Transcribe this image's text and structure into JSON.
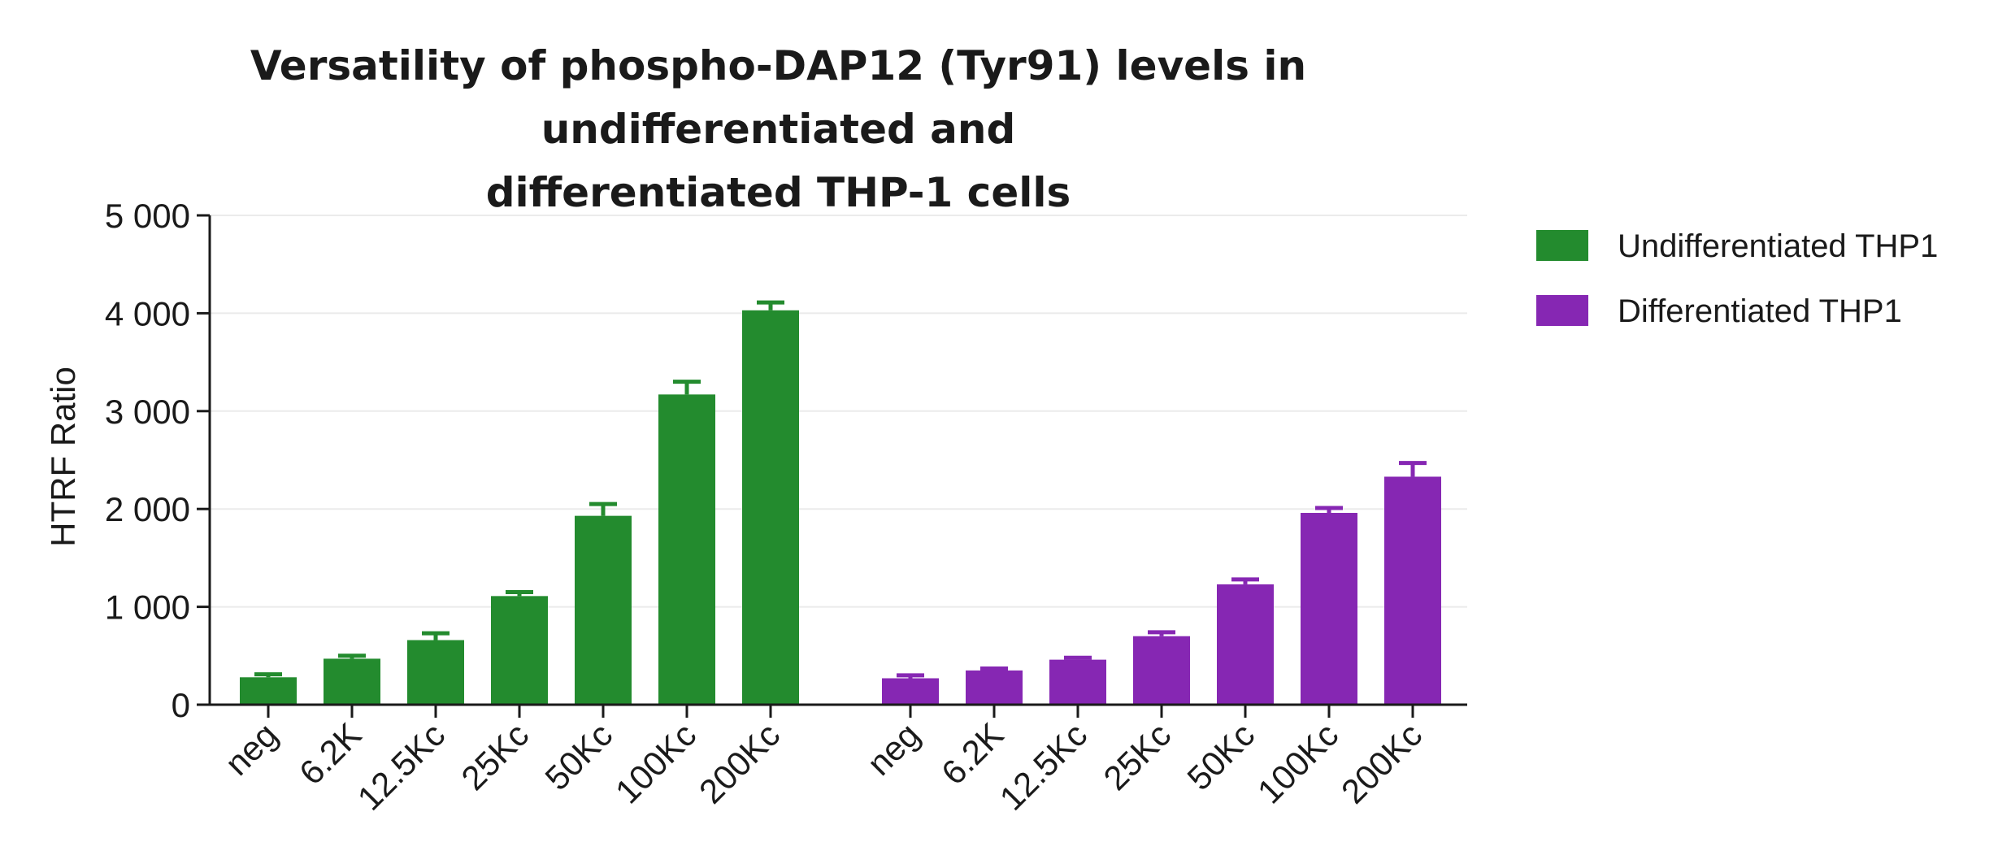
{
  "chart_data": {
    "type": "bar",
    "title_lines": [
      "Versatility of phospho-DAP12 (Tyr91) levels in undifferentiated and",
      "differentiated THP-1 cells"
    ],
    "ylabel": "HTRF Ratio",
    "ylim": [
      0,
      5000
    ],
    "yticks": [
      0,
      1000,
      2000,
      3000,
      4000,
      5000
    ],
    "ytick_labels": [
      "0",
      "1 000",
      "2 000",
      "3 000",
      "4 000",
      "5 000"
    ],
    "grid": true,
    "legend_position": "top-right",
    "series": [
      {
        "name": "Undifferentiated THP1",
        "color": "#238b2e",
        "categories": [
          "neg",
          "6.2K",
          "12.5Kc",
          "25Kc",
          "50Kc",
          "100Kc",
          "200Kc"
        ],
        "values": [
          280,
          470,
          660,
          1110,
          1930,
          3170,
          4030
        ],
        "errors": [
          30,
          30,
          70,
          40,
          120,
          130,
          80
        ]
      },
      {
        "name": "Differentiated THP1",
        "color": "#8627b3",
        "categories": [
          "neg",
          "6.2K",
          "12.5Kc",
          "25Kc",
          "50Kc",
          "100Kc",
          "200Kc"
        ],
        "values": [
          270,
          350,
          460,
          700,
          1230,
          1960,
          2330
        ],
        "errors": [
          30,
          20,
          20,
          40,
          50,
          50,
          140
        ]
      }
    ]
  }
}
